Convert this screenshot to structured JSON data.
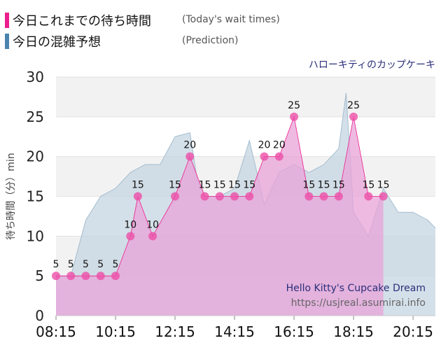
{
  "legend": {
    "actual": {
      "label": "今日これまでの待ち時間",
      "sublabel": "(Today's wait times)",
      "color": "#ec1d8c"
    },
    "prediction": {
      "label": "今日の混雑予想",
      "sublabel": "(Prediction)",
      "color": "#4a83ad"
    }
  },
  "chart_data": {
    "type": "area",
    "title": "ハローキティのカップケーキ",
    "ylabel": "待ち時間（分）min",
    "xlabel": "",
    "ylim": [
      0,
      30
    ],
    "yticks": [
      0,
      5,
      10,
      15,
      20,
      25,
      30
    ],
    "xlim": [
      "08:15",
      "21:00"
    ],
    "xticks": [
      "08:15",
      "10:15",
      "12:15",
      "14:15",
      "16:15",
      "18:15",
      "20:15"
    ],
    "grid": true,
    "series": [
      {
        "name": "今日これまでの待ち時間",
        "color": "#ec1d8c",
        "fill": "#e8a3d8",
        "points": [
          [
            "08:15",
            5
          ],
          [
            "08:45",
            5
          ],
          [
            "09:15",
            5
          ],
          [
            "09:45",
            5
          ],
          [
            "10:15",
            5
          ],
          [
            "10:45",
            10
          ],
          [
            "11:00",
            15
          ],
          [
            "11:30",
            10
          ],
          [
            "12:15",
            15
          ],
          [
            "12:45",
            20
          ],
          [
            "13:15",
            15
          ],
          [
            "13:45",
            15
          ],
          [
            "14:15",
            15
          ],
          [
            "14:45",
            15
          ],
          [
            "15:15",
            20
          ],
          [
            "15:45",
            20
          ],
          [
            "16:15",
            25
          ],
          [
            "16:45",
            15
          ],
          [
            "17:15",
            15
          ],
          [
            "17:45",
            15
          ],
          [
            "18:15",
            25
          ],
          [
            "18:45",
            15
          ],
          [
            "19:15",
            15
          ]
        ]
      },
      {
        "name": "今日の混雑予想",
        "color": "#a3bccf",
        "fill": "#c6d6e2",
        "points": [
          [
            "08:15",
            5
          ],
          [
            "08:45",
            5
          ],
          [
            "09:15",
            12
          ],
          [
            "09:45",
            15
          ],
          [
            "10:15",
            16
          ],
          [
            "10:45",
            18
          ],
          [
            "11:15",
            19
          ],
          [
            "11:45",
            19
          ],
          [
            "12:15",
            22.5
          ],
          [
            "12:45",
            23
          ],
          [
            "13:00",
            17
          ],
          [
            "13:15",
            15
          ],
          [
            "13:45",
            15
          ],
          [
            "14:15",
            16
          ],
          [
            "14:45",
            22
          ],
          [
            "15:15",
            14
          ],
          [
            "15:45",
            18
          ],
          [
            "16:15",
            19
          ],
          [
            "16:45",
            18
          ],
          [
            "17:15",
            19
          ],
          [
            "17:45",
            21
          ],
          [
            "18:00",
            28
          ],
          [
            "18:15",
            13
          ],
          [
            "18:45",
            10
          ],
          [
            "19:15",
            16
          ],
          [
            "19:45",
            13
          ],
          [
            "20:15",
            13
          ],
          [
            "20:45",
            12
          ],
          [
            "21:00",
            11
          ]
        ]
      }
    ],
    "annotations": [
      "Hello Kitty's Cupcake Dream",
      "https://usjreal.asumirai.info"
    ]
  }
}
